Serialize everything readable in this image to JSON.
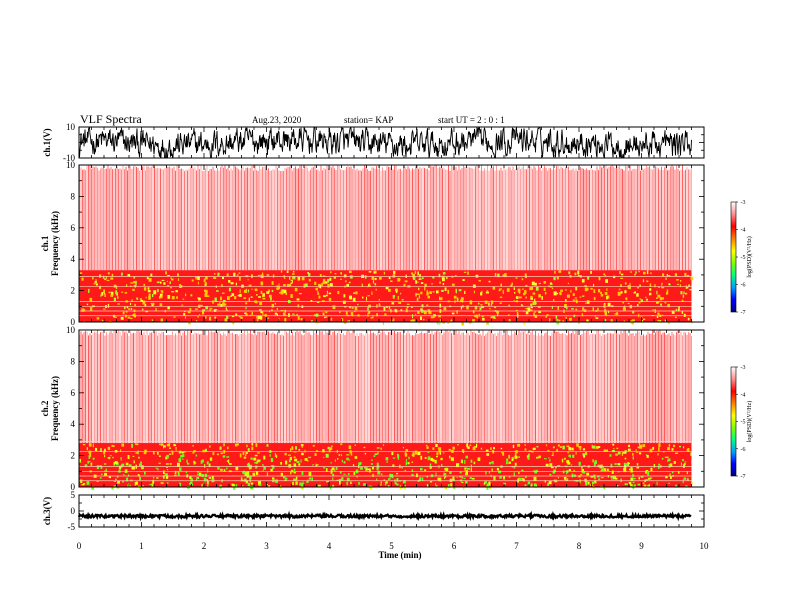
{
  "header": {
    "title": "VLF Spectra",
    "date": "Aug.23, 2020",
    "station": "station= KAP",
    "start": "start  UT =   2  : 0  : 1"
  },
  "chart_data": [
    {
      "type": "line",
      "name": "ch1-waveform",
      "ylabel": "ch.1(V)",
      "ylim": [
        -10,
        10
      ],
      "yticks": [
        "10",
        "-10"
      ],
      "xlim": [
        0,
        10
      ],
      "data_end_min": 9.8,
      "color": "#000000"
    },
    {
      "type": "heatmap",
      "name": "ch1-spectrogram",
      "ylabel": "ch.1\nFrequency (kHz)",
      "ylim": [
        0,
        10
      ],
      "yticks": [
        "10",
        "8",
        "6",
        "4",
        "2",
        "0"
      ],
      "xlim": [
        0,
        10
      ],
      "data_end_min": 9.8,
      "band_top_khz": 3.3,
      "colorbar": {
        "label": "log(PSD)(V²/Hz)",
        "range": [
          -7,
          -3
        ],
        "ticks": [
          "-3",
          "-4",
          "-5",
          "-6",
          "-7"
        ],
        "colors": [
          "#000080",
          "#0000ff",
          "#00a0ff",
          "#00ff80",
          "#80ff00",
          "#ffff00",
          "#ff8000",
          "#ff0000",
          "#ff9090",
          "#ffffff"
        ]
      }
    },
    {
      "type": "heatmap",
      "name": "ch2-spectrogram",
      "ylabel": "ch.2\nFrequency (kHz)",
      "ylim": [
        0,
        10
      ],
      "yticks": [
        "10",
        "8",
        "6",
        "4",
        "2",
        "0"
      ],
      "xlim": [
        0,
        10
      ],
      "data_end_min": 9.8,
      "band_top_khz": 2.8,
      "colorbar": {
        "label": "log(PSD)(V²/Hz)",
        "range": [
          -7,
          -3
        ],
        "ticks": [
          "-3",
          "-4",
          "-5",
          "-6",
          "-7"
        ],
        "colors": [
          "#000080",
          "#0000ff",
          "#00a0ff",
          "#00ff80",
          "#80ff00",
          "#ffff00",
          "#ff8000",
          "#ff0000",
          "#ff9090",
          "#ffffff"
        ]
      }
    },
    {
      "type": "line",
      "name": "ch3-waveform",
      "ylabel": "ch.3(V)",
      "ylim": [
        -5,
        5
      ],
      "yticks": [
        "5",
        "0",
        "-5"
      ],
      "xlim": [
        0,
        10
      ],
      "data_end_min": 9.8,
      "color": "#000000"
    }
  ],
  "xaxis": {
    "label": "Time (min)",
    "ticks": [
      "0",
      "1",
      "2",
      "3",
      "4",
      "5",
      "6",
      "7",
      "8",
      "9",
      "10"
    ]
  }
}
